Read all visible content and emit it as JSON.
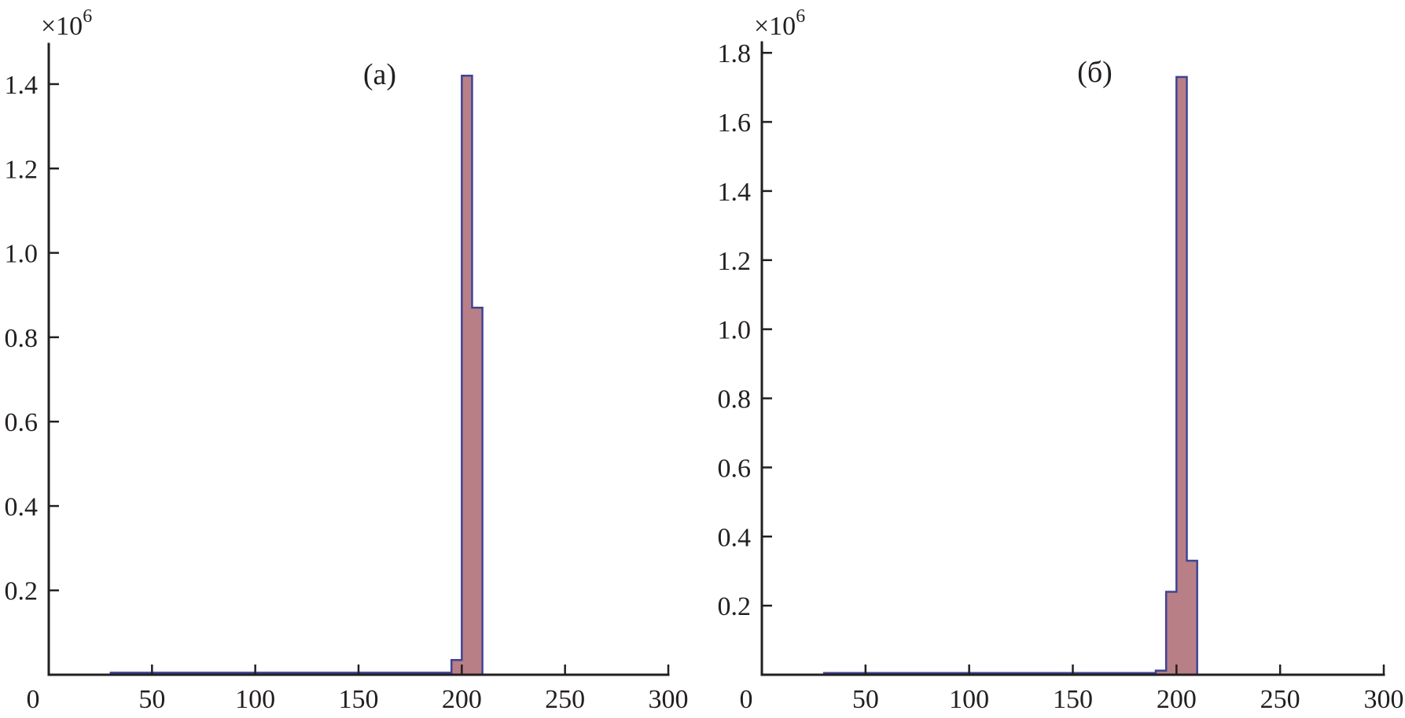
{
  "figure": {
    "background": "#ffffff",
    "axis_color": "#231f20",
    "text_color": "#231f20",
    "bar_fill": "#b97f87",
    "bar_edge": "#3f4494"
  },
  "chart_data": [
    {
      "type": "bar",
      "subtype": "histogram",
      "panel_label": "(a)",
      "title": "",
      "xlabel": "",
      "ylabel": "",
      "y_multiplier": {
        "base": "×10",
        "exponent": "6"
      },
      "grid": false,
      "legend": null,
      "xlim": [
        0,
        300
      ],
      "ylim": [
        0,
        1495000
      ],
      "xticks": [
        {
          "value": 0,
          "label": "0"
        },
        {
          "value": 50,
          "label": "50"
        },
        {
          "value": 100,
          "label": "100"
        },
        {
          "value": 150,
          "label": "150"
        },
        {
          "value": 200,
          "label": "200"
        },
        {
          "value": 250,
          "label": "250"
        },
        {
          "value": 300,
          "label": "300"
        }
      ],
      "yticks": [
        {
          "value": 200000,
          "label": "0.2"
        },
        {
          "value": 400000,
          "label": "0.4"
        },
        {
          "value": 600000,
          "label": "0.6"
        },
        {
          "value": 800000,
          "label": "0.8"
        },
        {
          "value": 1000000,
          "label": "1.0"
        },
        {
          "value": 1200000,
          "label": "1.2"
        },
        {
          "value": 1400000,
          "label": "1.4"
        }
      ],
      "bars": [
        {
          "x0": 30,
          "x1": 195,
          "y": 5000
        },
        {
          "x0": 195,
          "x1": 200,
          "y": 35000
        },
        {
          "x0": 200,
          "x1": 205,
          "y": 1420000
        },
        {
          "x0": 205,
          "x1": 210,
          "y": 870000
        },
        {
          "x0": 210,
          "x1": 300,
          "y": 0
        }
      ]
    },
    {
      "type": "bar",
      "subtype": "histogram",
      "panel_label": "(б)",
      "title": "",
      "xlabel": "",
      "ylabel": "",
      "y_multiplier": {
        "base": "×10",
        "exponent": "6"
      },
      "grid": false,
      "legend": null,
      "xlim": [
        0,
        300
      ],
      "ylim": [
        0,
        1830000
      ],
      "xticks": [
        {
          "value": 0,
          "label": "0"
        },
        {
          "value": 50,
          "label": "50"
        },
        {
          "value": 100,
          "label": "100"
        },
        {
          "value": 150,
          "label": "150"
        },
        {
          "value": 200,
          "label": "200"
        },
        {
          "value": 250,
          "label": "250"
        },
        {
          "value": 300,
          "label": "300"
        }
      ],
      "yticks": [
        {
          "value": 200000,
          "label": "0.2"
        },
        {
          "value": 400000,
          "label": "0.4"
        },
        {
          "value": 600000,
          "label": "0.6"
        },
        {
          "value": 800000,
          "label": "0.8"
        },
        {
          "value": 1000000,
          "label": "1.0"
        },
        {
          "value": 1200000,
          "label": "1.2"
        },
        {
          "value": 1400000,
          "label": "1.4"
        },
        {
          "value": 1600000,
          "label": "1.6"
        },
        {
          "value": 1800000,
          "label": "1.8"
        }
      ],
      "bars": [
        {
          "x0": 30,
          "x1": 190,
          "y": 5000
        },
        {
          "x0": 190,
          "x1": 195,
          "y": 12000
        },
        {
          "x0": 195,
          "x1": 200,
          "y": 240000
        },
        {
          "x0": 200,
          "x1": 205,
          "y": 1730000
        },
        {
          "x0": 205,
          "x1": 210,
          "y": 330000
        },
        {
          "x0": 210,
          "x1": 300,
          "y": 0
        }
      ]
    }
  ]
}
